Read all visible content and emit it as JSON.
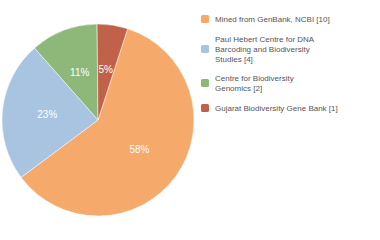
{
  "chart_data": {
    "type": "pie",
    "categories": [
      "Mined from GenBank, NCBI [10]",
      "Paul Hebert Centre for DNA\nBarcoding and Biodiversity\nStudies [4]",
      "Centre for Biodiversity\nGenomics [2]",
      "Gujarat Biodiversity Gene Bank [1]"
    ],
    "values": [
      58,
      23,
      11,
      5
    ],
    "value_labels": [
      "58%",
      "23%",
      "11%",
      "5%"
    ],
    "colors": [
      "#F5A96A",
      "#A8C4E0",
      "#8DB87A",
      "#C0614A"
    ],
    "data_labels": true,
    "legend": "upper right"
  }
}
